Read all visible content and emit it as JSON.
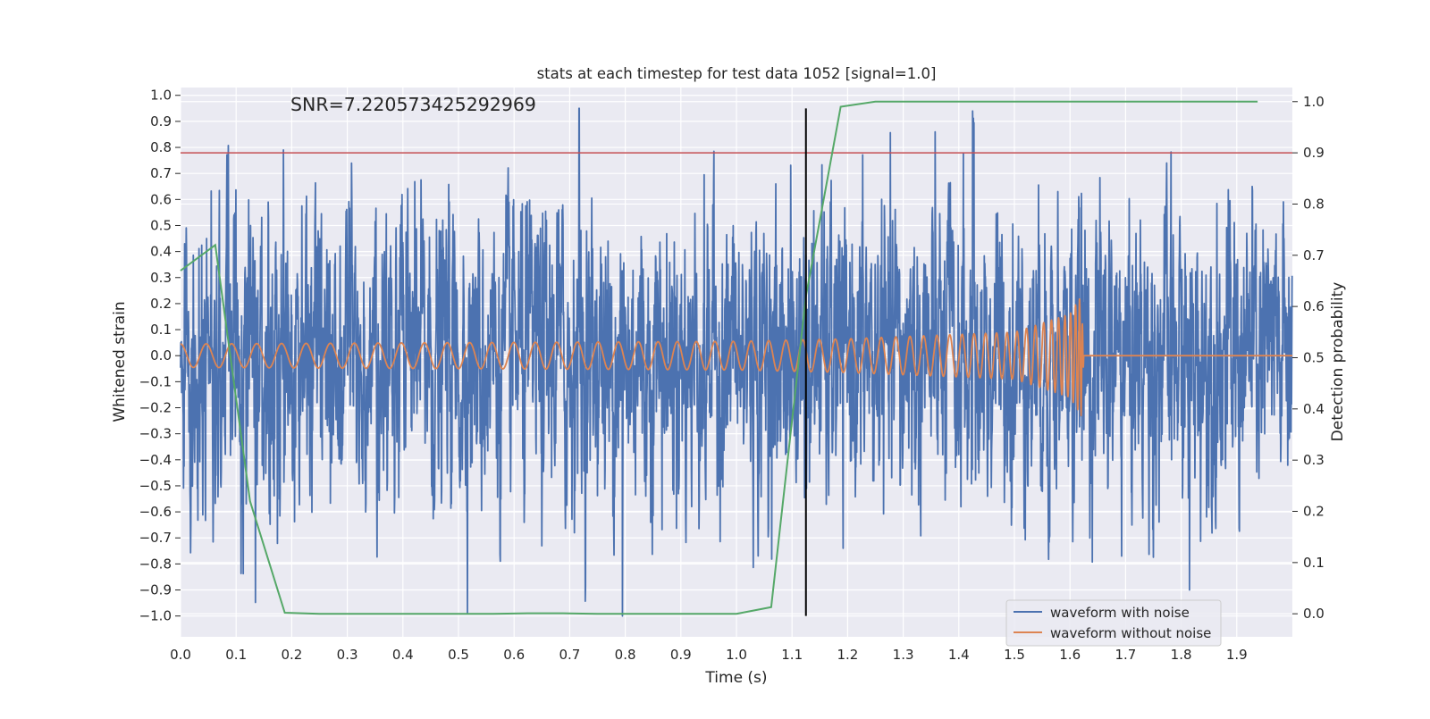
{
  "chart_data": {
    "type": "line",
    "title": "stats at each timestep for test data 1052 [signal=1.0]",
    "annotation": "SNR=7.220573425292969",
    "xlabel": "Time (s)",
    "ylabel_left": "Whitened strain",
    "ylabel_right": "Detection probability",
    "xlim": [
      0.0,
      2.0
    ],
    "ylim_left": [
      -1.08,
      1.03
    ],
    "ylim_right": [
      -0.045,
      1.0275
    ],
    "grid": true,
    "legend_position": "lower-right",
    "x_ticks": [
      "0.0",
      "0.1",
      "0.2",
      "0.3",
      "0.4",
      "0.5",
      "0.6",
      "0.7",
      "0.8",
      "0.9",
      "1.0",
      "1.1",
      "1.2",
      "1.3",
      "1.4",
      "1.5",
      "1.6",
      "1.7",
      "1.8",
      "1.9"
    ],
    "y_left_ticks": [
      "1.0",
      "0.9",
      "0.8",
      "0.7",
      "0.6",
      "0.5",
      "0.4",
      "0.3",
      "0.2",
      "0.1",
      "0.0",
      "−0.1",
      "−0.2",
      "−0.3",
      "−0.4",
      "−0.5",
      "−0.6",
      "−0.7",
      "−0.8",
      "−0.9",
      "−1.0"
    ],
    "y_right_ticks": [
      "1.0",
      "0.9",
      "0.8",
      "0.7",
      "0.6",
      "0.5",
      "0.4",
      "0.3",
      "0.2",
      "0.1",
      "0.0"
    ],
    "series": [
      {
        "name": "waveform with noise",
        "color": "#4c72b0",
        "axis": "left",
        "kind": "noisy signal",
        "sample_rate_hz": 2048,
        "noise_amplitude": 0.27,
        "peak_values": [
          {
            "x": 0.185,
            "y": 0.79
          },
          {
            "x": 0.717,
            "y": 0.95
          },
          {
            "x": 0.795,
            "y": -1.0
          },
          {
            "x": 1.425,
            "y": 0.94
          },
          {
            "x": 1.815,
            "y": -0.9
          }
        ],
        "signal_envelope": [
          {
            "x": 0.0,
            "amplitude": 0.045
          },
          {
            "x": 1.0,
            "amplitude": 0.055
          },
          {
            "x": 1.2,
            "amplitude": 0.065
          },
          {
            "x": 1.5,
            "amplitude": 0.09
          },
          {
            "x": 1.6,
            "amplitude": 0.16
          },
          {
            "x": 1.62,
            "amplitude": 0.23
          },
          {
            "x": 1.625,
            "amplitude": 0.0
          }
        ]
      },
      {
        "name": "waveform without noise",
        "color": "#dd8452",
        "axis": "left",
        "kind": "chirp",
        "start_frequency_hz": 35,
        "end_x": 1.625,
        "envelope": [
          {
            "x": 0.0,
            "amplitude": 0.045
          },
          {
            "x": 1.0,
            "amplitude": 0.055
          },
          {
            "x": 1.2,
            "amplitude": 0.065
          },
          {
            "x": 1.5,
            "amplitude": 0.09
          },
          {
            "x": 1.6,
            "amplitude": 0.16
          },
          {
            "x": 1.62,
            "amplitude": 0.23
          },
          {
            "x": 1.625,
            "amplitude": 0.0
          }
        ]
      },
      {
        "name": "detection probability",
        "color": "#55a868",
        "axis": "right",
        "x": [
          0.0,
          0.0625,
          0.125,
          0.1875,
          0.25,
          0.3125,
          0.375,
          0.4375,
          0.5,
          0.5625,
          0.625,
          0.6875,
          0.75,
          0.8125,
          0.875,
          0.9375,
          1.0,
          1.0625,
          1.125,
          1.1875,
          1.25,
          1.3125,
          1.375,
          1.4375,
          1.5,
          1.5625,
          1.625,
          1.6875,
          1.75,
          1.8125,
          1.875,
          1.9375
        ],
        "values": [
          0.67,
          0.72,
          0.22,
          0.002,
          0.0,
          0.0,
          0.0,
          0.0,
          0.0,
          0.0,
          0.001,
          0.001,
          0.0,
          0.0,
          0.0,
          0.0,
          0.0,
          0.013,
          0.62,
          0.99,
          1.0,
          1.0,
          1.0,
          1.0,
          1.0,
          1.0,
          1.0,
          1.0,
          1.0,
          1.0,
          1.0,
          1.0
        ]
      }
    ],
    "threshold_line": {
      "axis": "right",
      "value": 0.9,
      "color": "#c44e52"
    },
    "event_marker": {
      "x": 1.125,
      "color": "#000000",
      "y_range": [
        -1.0,
        0.95
      ]
    },
    "legend": [
      "waveform with noise",
      "waveform without noise"
    ]
  }
}
